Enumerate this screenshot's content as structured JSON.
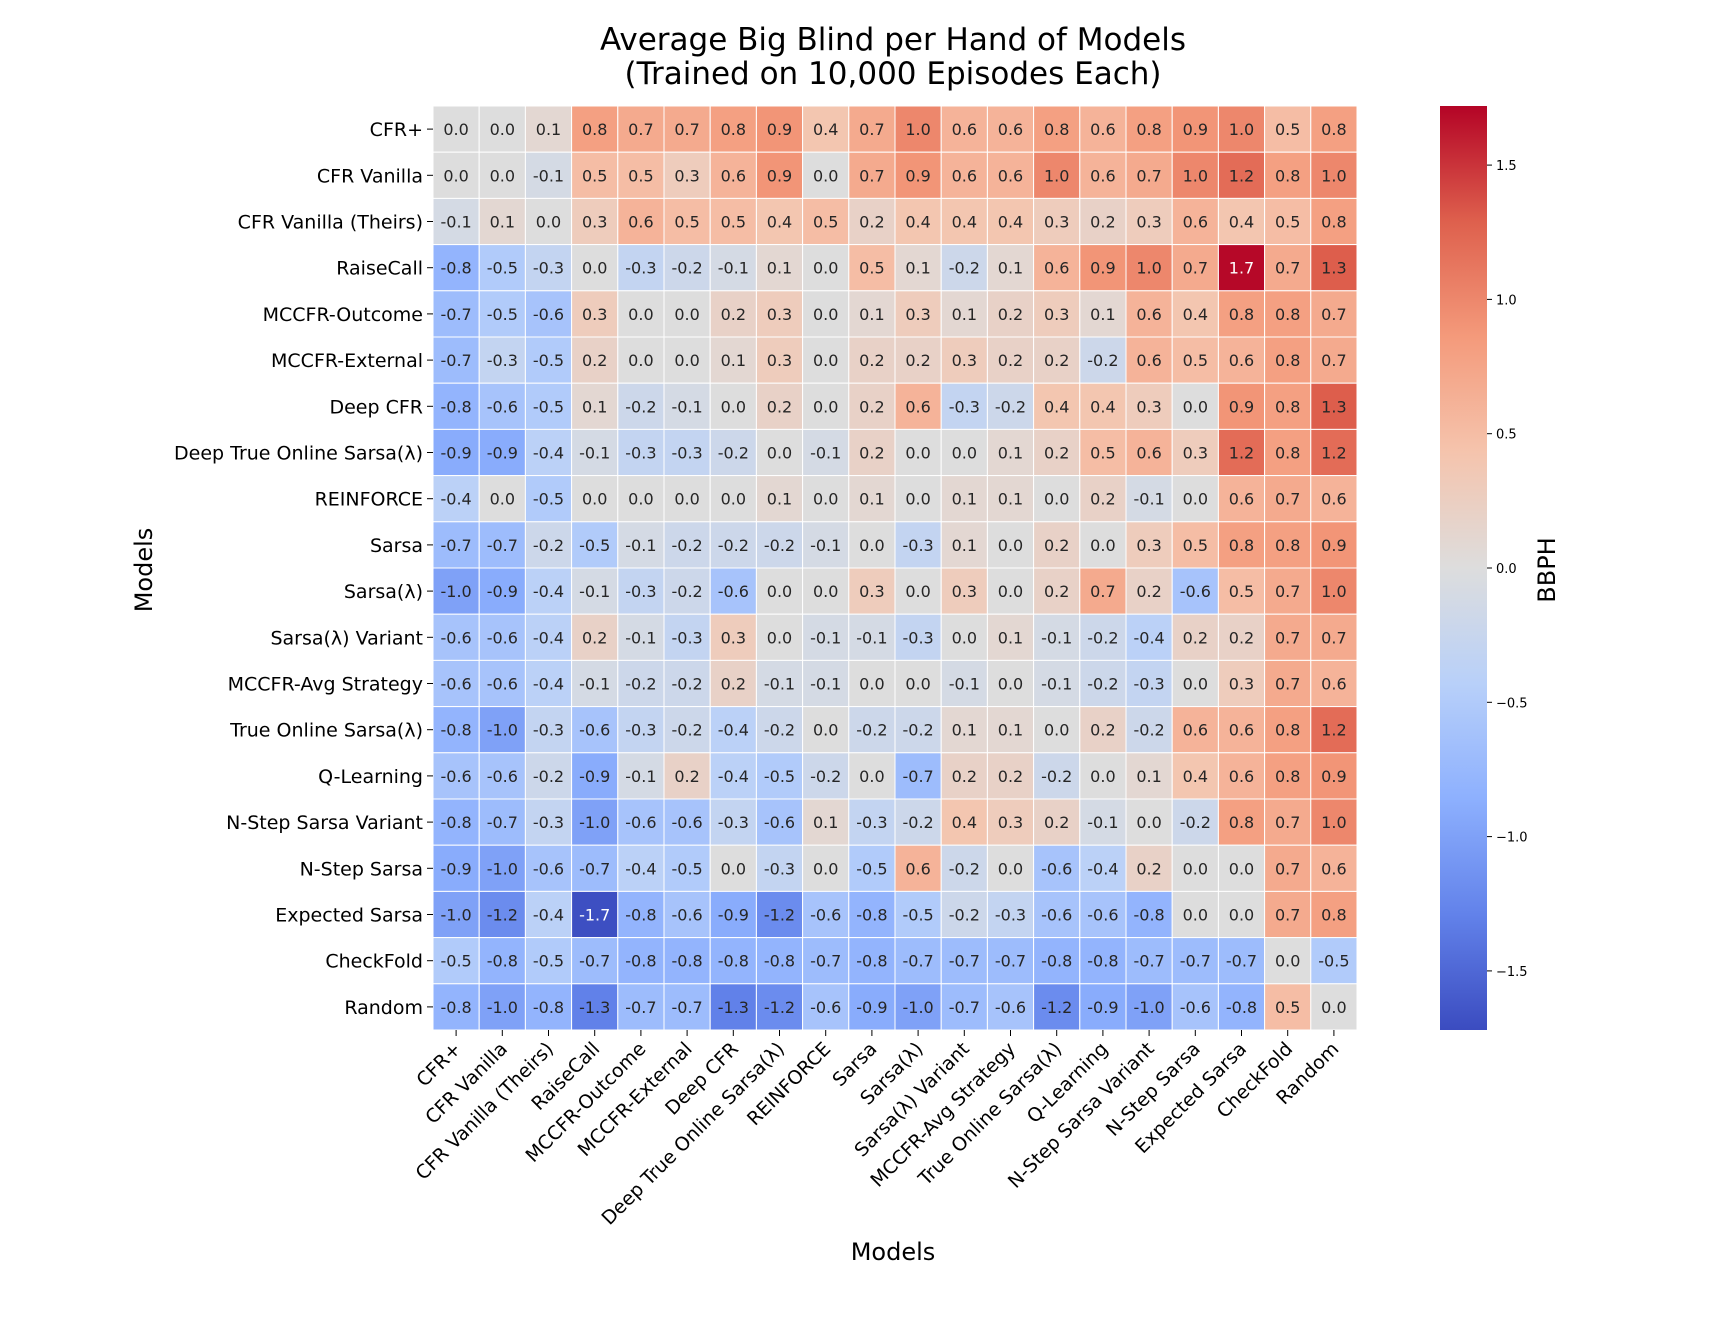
{
  "chart_data": {
    "type": "heatmap",
    "title": "Average Big Blind per Hand of Models",
    "subtitle": "(Trained on 10,000 Episodes Each)",
    "xlabel": "Models",
    "ylabel": "Models",
    "colorbar_label": "BBPH",
    "colormap": "coolwarm",
    "vmin": -1.72,
    "vmax": 1.72,
    "colorbar_ticks": [
      1.5,
      1.0,
      0.5,
      0.0,
      -0.5,
      -1.0,
      -1.5
    ],
    "colorbar_tick_labels": [
      "1.5",
      "1.0",
      "0.5",
      "0.0",
      "−0.5",
      "−1.0",
      "−1.5"
    ],
    "rows": [
      "CFR+",
      "CFR Vanilla",
      "CFR Vanilla (Theirs)",
      "RaiseCall",
      "MCCFR-Outcome",
      "MCCFR-External",
      "Deep CFR",
      "Deep True Online Sarsa(λ)",
      "REINFORCE",
      "Sarsa",
      "Sarsa(λ)",
      "Sarsa(λ) Variant",
      "MCCFR-Avg Strategy",
      "True Online Sarsa(λ)",
      "Q-Learning",
      "N-Step Sarsa Variant",
      "N-Step Sarsa",
      "Expected Sarsa",
      "CheckFold",
      "Random"
    ],
    "columns": [
      "CFR+",
      "CFR Vanilla",
      "CFR Vanilla (Theirs)",
      "RaiseCall",
      "MCCFR-Outcome",
      "MCCFR-External",
      "Deep CFR",
      "Deep True Online Sarsa(λ)",
      "REINFORCE",
      "Sarsa",
      "Sarsa(λ)",
      "Sarsa(λ) Variant",
      "MCCFR-Avg Strategy",
      "True Online Sarsa(λ)",
      "Q-Learning",
      "N-Step Sarsa Variant",
      "N-Step Sarsa",
      "Expected Sarsa",
      "CheckFold",
      "Random"
    ],
    "values": [
      [
        0.0,
        0.0,
        0.1,
        0.8,
        0.7,
        0.7,
        0.8,
        0.9,
        0.4,
        0.7,
        1.0,
        0.6,
        0.6,
        0.8,
        0.6,
        0.8,
        0.9,
        1.0,
        0.5,
        0.8
      ],
      [
        -0.0,
        0.0,
        -0.1,
        0.5,
        0.5,
        0.3,
        0.6,
        0.9,
        -0.0,
        0.7,
        0.9,
        0.6,
        0.6,
        1.0,
        0.6,
        0.7,
        1.0,
        1.2,
        0.8,
        1.0
      ],
      [
        -0.1,
        0.1,
        0.0,
        0.3,
        0.6,
        0.5,
        0.5,
        0.4,
        0.5,
        0.2,
        0.4,
        0.4,
        0.4,
        0.3,
        0.2,
        0.3,
        0.6,
        0.4,
        0.5,
        0.8
      ],
      [
        -0.8,
        -0.5,
        -0.3,
        0.0,
        -0.3,
        -0.2,
        -0.1,
        0.1,
        0.0,
        0.5,
        0.1,
        -0.2,
        0.1,
        0.6,
        0.9,
        1.0,
        0.7,
        1.7,
        0.7,
        1.3
      ],
      [
        -0.7,
        -0.5,
        -0.6,
        0.3,
        0.0,
        -0.0,
        0.2,
        0.3,
        -0.0,
        0.1,
        0.3,
        0.1,
        0.2,
        0.3,
        0.1,
        0.6,
        0.4,
        0.8,
        0.8,
        0.7
      ],
      [
        -0.7,
        -0.3,
        -0.5,
        0.2,
        0.0,
        0.0,
        0.1,
        0.3,
        -0.0,
        0.2,
        0.2,
        0.3,
        0.2,
        0.2,
        -0.2,
        0.6,
        0.5,
        0.6,
        0.8,
        0.7
      ],
      [
        -0.8,
        -0.6,
        -0.5,
        0.1,
        -0.2,
        -0.1,
        0.0,
        0.2,
        0.0,
        0.2,
        0.6,
        -0.3,
        -0.2,
        0.4,
        0.4,
        0.3,
        0.0,
        0.9,
        0.8,
        1.3
      ],
      [
        -0.9,
        -0.9,
        -0.4,
        -0.1,
        -0.3,
        -0.3,
        -0.2,
        0.0,
        -0.1,
        0.2,
        0.0,
        -0.0,
        0.1,
        0.2,
        0.5,
        0.6,
        0.3,
        1.2,
        0.8,
        1.2
      ],
      [
        -0.4,
        0.0,
        -0.5,
        -0.0,
        0.0,
        0.0,
        -0.0,
        0.1,
        0.0,
        0.1,
        0.0,
        0.1,
        0.1,
        0.0,
        0.2,
        -0.1,
        0.0,
        0.6,
        0.7,
        0.6
      ],
      [
        -0.7,
        -0.7,
        -0.2,
        -0.5,
        -0.1,
        -0.2,
        -0.2,
        -0.2,
        -0.1,
        0.0,
        -0.3,
        0.1,
        0.0,
        0.2,
        0.0,
        0.3,
        0.5,
        0.8,
        0.8,
        0.9
      ],
      [
        -1.0,
        -0.9,
        -0.4,
        -0.1,
        -0.3,
        -0.2,
        -0.6,
        -0.0,
        -0.0,
        0.3,
        0.0,
        0.3,
        0.0,
        0.2,
        0.7,
        0.2,
        -0.6,
        0.5,
        0.7,
        1.0
      ],
      [
        -0.6,
        -0.6,
        -0.4,
        0.2,
        -0.1,
        -0.3,
        0.3,
        0.0,
        -0.1,
        -0.1,
        -0.3,
        0.0,
        0.1,
        -0.1,
        -0.2,
        -0.4,
        0.2,
        0.2,
        0.7,
        0.7
      ],
      [
        -0.6,
        -0.6,
        -0.4,
        -0.1,
        -0.2,
        -0.2,
        0.2,
        -0.1,
        -0.1,
        -0.0,
        -0.0,
        -0.1,
        0.0,
        -0.1,
        -0.2,
        -0.3,
        0.0,
        0.3,
        0.7,
        0.6
      ],
      [
        -0.8,
        -1.0,
        -0.3,
        -0.6,
        -0.3,
        -0.2,
        -0.4,
        -0.2,
        -0.0,
        -0.2,
        -0.2,
        0.1,
        0.1,
        0.0,
        0.2,
        -0.2,
        0.6,
        0.6,
        0.8,
        1.2
      ],
      [
        -0.6,
        -0.6,
        -0.2,
        -0.9,
        -0.1,
        0.2,
        -0.4,
        -0.5,
        -0.2,
        -0.0,
        -0.7,
        0.2,
        0.2,
        -0.2,
        0.0,
        0.1,
        0.4,
        0.6,
        0.8,
        0.9
      ],
      [
        -0.8,
        -0.7,
        -0.3,
        -1.0,
        -0.6,
        -0.6,
        -0.3,
        -0.6,
        0.1,
        -0.3,
        -0.2,
        0.4,
        0.3,
        0.2,
        -0.1,
        0.0,
        -0.2,
        0.8,
        0.7,
        1.0
      ],
      [
        -0.9,
        -1.0,
        -0.6,
        -0.7,
        -0.4,
        -0.5,
        -0.0,
        -0.3,
        -0.0,
        -0.5,
        0.6,
        -0.2,
        -0.0,
        -0.6,
        -0.4,
        0.2,
        0.0,
        0.0,
        0.7,
        0.6
      ],
      [
        -1.0,
        -1.2,
        -0.4,
        -1.7,
        -0.8,
        -0.6,
        -0.9,
        -1.2,
        -0.6,
        -0.8,
        -0.5,
        -0.2,
        -0.3,
        -0.6,
        -0.6,
        -0.8,
        -0.0,
        0.0,
        0.7,
        0.8
      ],
      [
        -0.5,
        -0.8,
        -0.5,
        -0.7,
        -0.8,
        -0.8,
        -0.8,
        -0.8,
        -0.7,
        -0.8,
        -0.7,
        -0.7,
        -0.7,
        -0.8,
        -0.8,
        -0.7,
        -0.7,
        -0.7,
        0.0,
        -0.5
      ],
      [
        -0.8,
        -1.0,
        -0.8,
        -1.3,
        -0.7,
        -0.7,
        -1.3,
        -1.2,
        -0.6,
        -0.9,
        -1.0,
        -0.7,
        -0.6,
        -1.2,
        -0.9,
        -1.0,
        -0.6,
        -0.8,
        0.5,
        0.0
      ]
    ]
  }
}
